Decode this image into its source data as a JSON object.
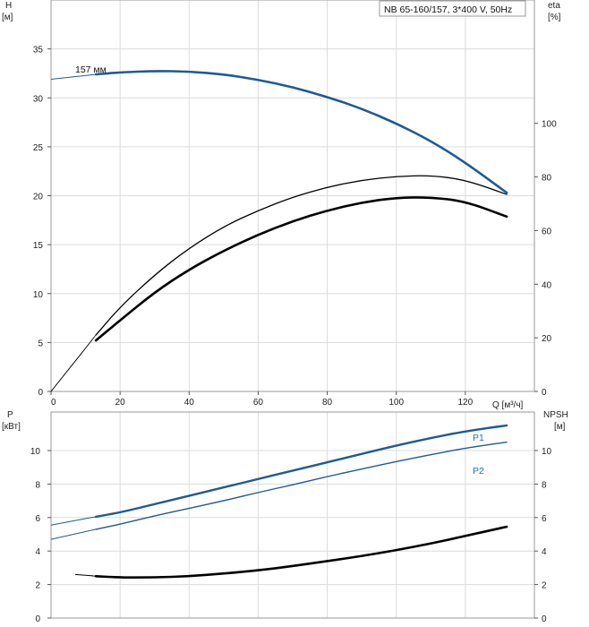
{
  "title": "NB 65-160/157, 3*400 V, 50Hz",
  "colors": {
    "blue": "#1f5a96",
    "blue_label": "#2f6db3",
    "black": "#000000",
    "grid": "#dcdcdc",
    "frame": "#9a9a9a"
  },
  "chart_data": [
    {
      "type": "line",
      "panel": "head-efficiency",
      "xlabel": "Q [м³/ч]",
      "ylabel_left": [
        "H",
        "[м]"
      ],
      "ylabel_right": [
        "eta",
        "[%]"
      ],
      "xlim": [
        0,
        140
      ],
      "ylim_left": [
        0,
        40
      ],
      "ylim_right": [
        0,
        146
      ],
      "xticks": [
        0,
        20,
        40,
        60,
        80,
        100,
        120
      ],
      "yticks_left": [
        0,
        5,
        10,
        15,
        20,
        25,
        30,
        35
      ],
      "yticks_right": [
        0,
        20,
        40,
        60,
        80,
        100
      ],
      "grid": true,
      "series": [
        {
          "name": "157 мм",
          "axis": "left",
          "color": "#1f5a96",
          "x": [
            0,
            13,
            20,
            30,
            40,
            50,
            60,
            70,
            80,
            90,
            100,
            110,
            120,
            132
          ],
          "y": [
            31.9,
            32.4,
            32.6,
            32.75,
            32.7,
            32.4,
            31.85,
            31.1,
            30.1,
            28.9,
            27.4,
            25.6,
            23.4,
            20.3
          ],
          "dash_x_max": 13
        },
        {
          "axis": "right",
          "color": "#000000",
          "x": [
            0,
            13,
            20,
            30,
            40,
            50,
            60,
            70,
            80,
            90,
            100,
            110,
            120,
            132
          ],
          "y": [
            0,
            21,
            31.5,
            43.5,
            53.5,
            61.5,
            67.5,
            72.5,
            76.2,
            78.8,
            80.2,
            80.6,
            78.9,
            73.5
          ],
          "dash_x_max": 13
        },
        {
          "axis": "right",
          "color": "#000000",
          "x": [
            13,
            20,
            30,
            40,
            50,
            60,
            70,
            80,
            90,
            100,
            110,
            120,
            132
          ],
          "y": [
            19,
            26.5,
            37,
            45.5,
            52.5,
            58.5,
            63.5,
            67.5,
            70.5,
            72.3,
            72.4,
            70.9,
            65.2
          ]
        }
      ]
    },
    {
      "type": "line",
      "panel": "power-npsh",
      "ylabel_left": [
        "P",
        "[кВт]"
      ],
      "ylabel_right": [
        "NPSH",
        "[м]"
      ],
      "xlim": [
        0,
        140
      ],
      "ylim_left": [
        0,
        12.3
      ],
      "ylim_right": [
        0,
        12.3
      ],
      "yticks_left": [
        0,
        2,
        4,
        6,
        8,
        10
      ],
      "yticks_right": [
        0,
        2,
        4,
        6,
        8,
        10
      ],
      "grid": true,
      "series": [
        {
          "name": "P1",
          "axis": "left",
          "color": "#1f5a96",
          "x": [
            0,
            13,
            20,
            30,
            40,
            50,
            60,
            70,
            80,
            90,
            100,
            110,
            120,
            132
          ],
          "y": [
            5.55,
            6.05,
            6.3,
            6.8,
            7.3,
            7.8,
            8.3,
            8.8,
            9.3,
            9.8,
            10.3,
            10.75,
            11.15,
            11.5
          ],
          "dash_x_max": 13
        },
        {
          "name": "P2",
          "axis": "left",
          "color": "#1f5a96",
          "x": [
            0,
            13,
            20,
            30,
            40,
            50,
            60,
            70,
            80,
            90,
            100,
            110,
            120,
            132
          ],
          "y": [
            4.7,
            5.3,
            5.6,
            6.1,
            6.55,
            7.0,
            7.5,
            7.95,
            8.45,
            8.9,
            9.35,
            9.75,
            10.15,
            10.5
          ],
          "dash_x_max": 13
        },
        {
          "axis": "right",
          "color": "#000000",
          "x": [
            7,
            13,
            20,
            30,
            40,
            50,
            60,
            70,
            80,
            90,
            100,
            110,
            120,
            132
          ],
          "y": [
            2.6,
            2.5,
            2.42,
            2.42,
            2.5,
            2.65,
            2.85,
            3.1,
            3.4,
            3.7,
            4.05,
            4.45,
            4.9,
            5.45
          ],
          "dash_x_max": 13
        }
      ]
    }
  ]
}
